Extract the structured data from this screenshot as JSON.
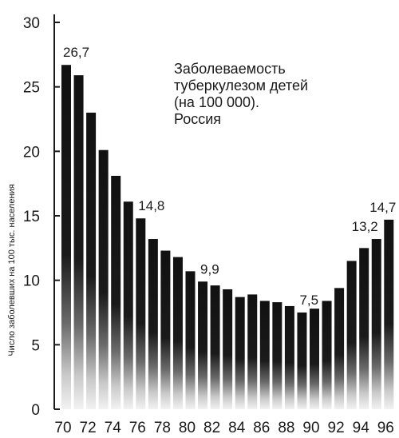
{
  "chart_data": {
    "type": "bar",
    "title_lines": [
      "Заболеваемость",
      "туберкулезом детей",
      "(на 100 000).",
      "Россия"
    ],
    "ylabel": "Число заболевших на 100 тыс. населения",
    "xlabel": "",
    "ylim": [
      0,
      30
    ],
    "y_ticks": [
      "0",
      "5",
      "10",
      "15",
      "20",
      "25",
      "30"
    ],
    "x_ticks": [
      "70",
      "72",
      "74",
      "76",
      "78",
      "80",
      "82",
      "84",
      "86",
      "88",
      "90",
      "92",
      "94",
      "96"
    ],
    "grid": false,
    "years": [
      1970,
      1971,
      1972,
      1973,
      1974,
      1975,
      1976,
      1977,
      1978,
      1979,
      1980,
      1981,
      1982,
      1983,
      1984,
      1985,
      1986,
      1987,
      1988,
      1989,
      1990,
      1991,
      1992,
      1993,
      1994,
      1995,
      1996
    ],
    "values": [
      26.7,
      25.9,
      23.0,
      20.1,
      18.1,
      16.1,
      14.8,
      13.2,
      12.3,
      11.8,
      10.7,
      9.9,
      9.6,
      9.3,
      8.7,
      8.9,
      8.4,
      8.3,
      8.0,
      7.5,
      7.8,
      8.4,
      9.4,
      11.5,
      12.5,
      13.2,
      14.7
    ],
    "data_labels": [
      {
        "year": 1970,
        "text": "26,7"
      },
      {
        "year": 1976,
        "text": "14,8"
      },
      {
        "year": 1981,
        "text": "9,9"
      },
      {
        "year": 1989,
        "text": "7,5"
      },
      {
        "year": 1995,
        "text": "13,2"
      },
      {
        "year": 1996,
        "text": "14,7"
      }
    ],
    "bar_color": "#111111"
  }
}
